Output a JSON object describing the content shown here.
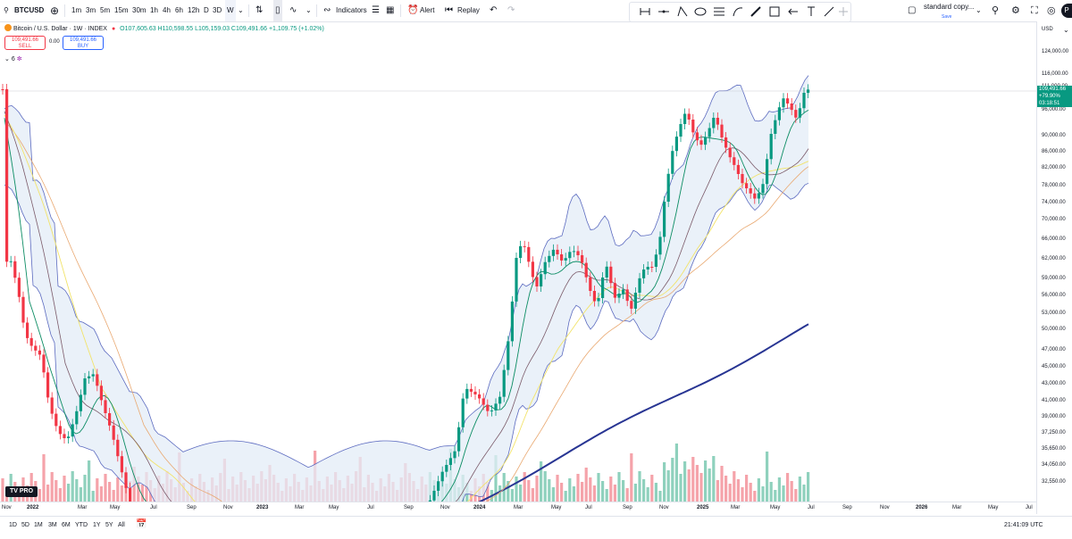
{
  "toolbar": {
    "symbol": "BTCUSD",
    "intervals": [
      "1m",
      "3m",
      "5m",
      "15m",
      "30m",
      "1h",
      "4h",
      "6h",
      "12h",
      "D",
      "3D",
      "W"
    ],
    "active_interval": "W",
    "indicators_label": "Indicators",
    "alert_label": "Alert",
    "replay_label": "Replay",
    "layout_name": "standard copy...",
    "layout_status": "Save",
    "avatar_initial": "P"
  },
  "legend": {
    "title": "Bitcoin / U.S. Dollar · 1W · INDEX",
    "ohlc": "O107,605.63 H110,598.55 L105,159.03 C109,491.66 +1,109.75 (+1.02%)",
    "sell_price": "109,491.66",
    "sell_label": "SELL",
    "spread": "0.00",
    "buy_price": "109,491.66",
    "buy_label": "BUY",
    "indicator_count": "6"
  },
  "price_axis": {
    "currency": "USD",
    "labels": [
      "124,000.00",
      "116,000.00",
      "111,000.00",
      "101,000.00",
      "96,000.00",
      "90,000.00",
      "86,000.00",
      "82,000.00",
      "78,000.00",
      "74,000.00",
      "70,000.00",
      "66,000.00",
      "62,000.00",
      "59,000.00",
      "56,000.00",
      "53,000.00",
      "50,000.00",
      "47,000.00",
      "45,000.00",
      "43,000.00",
      "41,000.00",
      "39,000.00",
      "37,250.00",
      "35,650.00",
      "34,050.00",
      "32,550.00"
    ],
    "current_price": "109,491.66",
    "current_change": "+79.90%",
    "countdown": "03:18:51"
  },
  "time_axis": {
    "labels": [
      "Nov",
      "2022",
      "Mar",
      "May",
      "Jul",
      "Sep",
      "Nov",
      "2023",
      "Mar",
      "May",
      "Jul",
      "Sep",
      "Nov",
      "2024",
      "Mar",
      "May",
      "Jul",
      "Sep",
      "Nov",
      "2025",
      "Mar",
      "May",
      "Jul",
      "Sep",
      "Nov",
      "2026",
      "Mar",
      "May",
      "Jul"
    ]
  },
  "bottom": {
    "ranges": [
      "1D",
      "5D",
      "1M",
      "3M",
      "6M",
      "YTD",
      "1Y",
      "5Y",
      "All"
    ],
    "clock": "21:41:09 UTC"
  },
  "brand": {
    "logo": "TV PRO"
  },
  "colors": {
    "up": "#089981",
    "down": "#f23645",
    "accent": "#2962ff",
    "band_fill": "#e3ecf7",
    "ma200": "#283593"
  }
}
